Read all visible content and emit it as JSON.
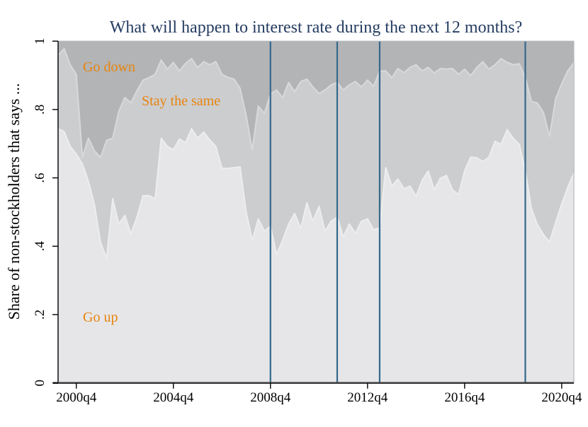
{
  "chart_data": {
    "type": "area",
    "stacked": true,
    "title": "What will happen to interest rate during the next 12 months?",
    "ylabel": "Share of non-stockholders that says ...",
    "xlabel": "",
    "ylim": [
      0,
      1
    ],
    "grid": false,
    "legend": "none (labels annotated inside plot)",
    "x_note": "quarterly observations read from axis, 2000q1 through 2021q2",
    "n_points": 86,
    "x_ticks": {
      "labels": [
        "2000q4",
        "2004q4",
        "2008q4",
        "2012q4",
        "2016q4",
        "2020q4"
      ],
      "quarter_indices": [
        3,
        19,
        35,
        51,
        67,
        83
      ]
    },
    "y_ticks": {
      "labels": [
        "0",
        ".2",
        ".4",
        ".6",
        ".8",
        "1"
      ],
      "values": [
        0,
        0.2,
        0.4,
        0.6,
        0.8,
        1
      ]
    },
    "reflines_quarter_indices": [
      35,
      46,
      53,
      77
    ],
    "annotations": {
      "go_down": "Go down",
      "stay": "Stay the same",
      "go_up": "Go up"
    },
    "series": [
      {
        "name": "Go up",
        "values": [
          0.744,
          0.735,
          0.692,
          0.67,
          0.64,
          0.59,
          0.52,
          0.41,
          0.365,
          0.539,
          0.465,
          0.49,
          0.436,
          0.485,
          0.548,
          0.548,
          0.539,
          0.716,
          0.692,
          0.682,
          0.714,
          0.703,
          0.744,
          0.716,
          0.734,
          0.711,
          0.692,
          0.628,
          0.628,
          0.63,
          0.632,
          0.5,
          0.417,
          0.48,
          0.444,
          0.459,
          0.376,
          0.417,
          0.465,
          0.496,
          0.452,
          0.527,
          0.473,
          0.517,
          0.444,
          0.473,
          0.485,
          0.427,
          0.465,
          0.438,
          0.473,
          0.48,
          0.448,
          0.454,
          0.63,
          0.576,
          0.597,
          0.568,
          0.576,
          0.546,
          0.593,
          0.62,
          0.565,
          0.599,
          0.607,
          0.565,
          0.551,
          0.62,
          0.661,
          0.659,
          0.648,
          0.66,
          0.707,
          0.698,
          0.741,
          0.716,
          0.698,
          0.623,
          0.51,
          0.463,
          0.434,
          0.413,
          0.469,
          0.524,
          0.572,
          0.614
        ]
      },
      {
        "name": "Stay the same",
        "values": [
          0.215,
          0.243,
          0.239,
          0.233,
          0.02,
          0.126,
          0.159,
          0.25,
          0.345,
          0.177,
          0.329,
          0.345,
          0.384,
          0.37,
          0.338,
          0.345,
          0.364,
          0.229,
          0.226,
          0.256,
          0.199,
          0.232,
          0.205,
          0.207,
          0.206,
          0.22,
          0.248,
          0.275,
          0.266,
          0.259,
          0.23,
          0.282,
          0.265,
          0.33,
          0.345,
          0.386,
          0.481,
          0.418,
          0.414,
          0.356,
          0.43,
          0.362,
          0.393,
          0.33,
          0.413,
          0.399,
          0.394,
          0.43,
          0.407,
          0.444,
          0.393,
          0.406,
          0.42,
          0.458,
          0.283,
          0.317,
          0.323,
          0.34,
          0.347,
          0.385,
          0.32,
          0.303,
          0.342,
          0.321,
          0.311,
          0.355,
          0.352,
          0.298,
          0.238,
          0.264,
          0.292,
          0.258,
          0.224,
          0.251,
          0.197,
          0.215,
          0.236,
          0.271,
          0.314,
          0.356,
          0.357,
          0.308,
          0.362,
          0.352,
          0.341,
          0.323
        ]
      },
      {
        "name": "Go down",
        "values": [
          0.041,
          0.022,
          0.069,
          0.097,
          0.34,
          0.284,
          0.321,
          0.34,
          0.29,
          0.284,
          0.206,
          0.165,
          0.18,
          0.145,
          0.114,
          0.107,
          0.097,
          0.055,
          0.082,
          0.062,
          0.087,
          0.065,
          0.051,
          0.077,
          0.06,
          0.069,
          0.06,
          0.097,
          0.106,
          0.111,
          0.138,
          0.218,
          0.318,
          0.19,
          0.211,
          0.155,
          0.143,
          0.165,
          0.121,
          0.148,
          0.118,
          0.111,
          0.134,
          0.153,
          0.143,
          0.128,
          0.121,
          0.143,
          0.128,
          0.118,
          0.134,
          0.114,
          0.132,
          0.088,
          0.087,
          0.107,
          0.08,
          0.092,
          0.077,
          0.069,
          0.087,
          0.077,
          0.093,
          0.08,
          0.082,
          0.08,
          0.097,
          0.082,
          0.101,
          0.077,
          0.06,
          0.082,
          0.069,
          0.051,
          0.062,
          0.069,
          0.066,
          0.106,
          0.176,
          0.181,
          0.209,
          0.279,
          0.169,
          0.124,
          0.087,
          0.063
        ]
      }
    ],
    "colors": {
      "go_up_area": "#e6e6e8",
      "stay_area": "#cccdcf",
      "go_down_area": "#b3b4b6",
      "go_up_edge": "#ededee",
      "stay_edge": "#d8d9db",
      "refline": "#35688a",
      "title": "#253c61",
      "annotation": "#e8830c",
      "axis": "#000000",
      "x_axis_line": "#404040",
      "plot_border": "#b9babc"
    }
  }
}
